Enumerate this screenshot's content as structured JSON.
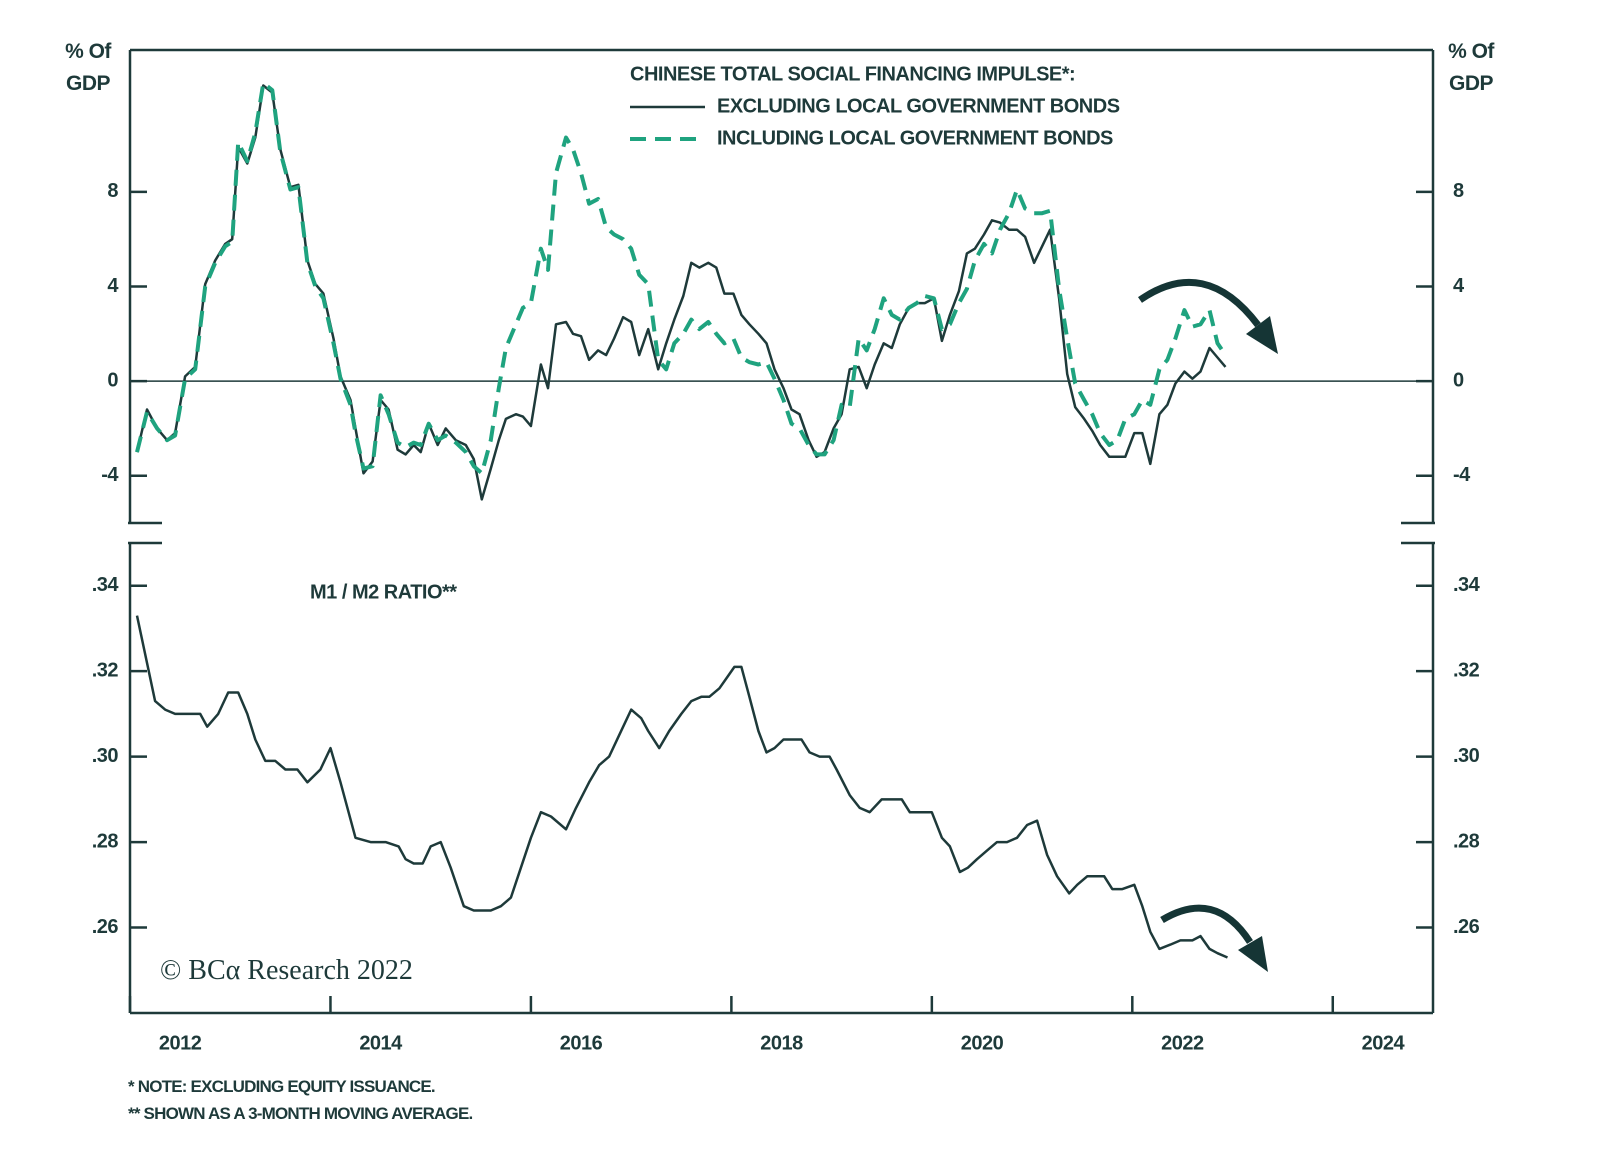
{
  "chart_data": [
    {
      "type": "line",
      "title": "CHINESE TOTAL SOCIAL FINANCING IMPULSE*:",
      "ylabel": "% Of GDP",
      "legend": "top-center",
      "zero_line": true,
      "xlim": [
        2012,
        2025
      ],
      "ylim": [
        -6,
        14
      ],
      "yticks": [
        -4,
        0,
        4,
        8
      ],
      "x": [
        2012.07,
        2012.17,
        2012.27,
        2012.37,
        2012.45,
        2012.55,
        2012.65,
        2012.75,
        2012.85,
        2012.95,
        2013.02,
        2013.08,
        2013.17,
        2013.25,
        2013.33,
        2013.42,
        2013.5,
        2013.6,
        2013.68,
        2013.77,
        2013.85,
        2013.93,
        2014.03,
        2014.1,
        2014.2,
        2014.25,
        2014.33,
        2014.42,
        2014.5,
        2014.58,
        2014.67,
        2014.75,
        2014.83,
        2014.9,
        2014.98,
        2015.07,
        2015.15,
        2015.25,
        2015.35,
        2015.43,
        2015.51,
        2015.6,
        2015.68,
        2015.75,
        2015.85,
        2015.92,
        2016,
        2016.1,
        2016.17,
        2016.25,
        2016.35,
        2016.42,
        2016.5,
        2016.58,
        2016.67,
        2016.75,
        2016.83,
        2016.92,
        2017,
        2017.08,
        2017.17,
        2017.27,
        2017.35,
        2017.43,
        2017.52,
        2017.6,
        2017.68,
        2017.77,
        2017.85,
        2017.93,
        2018.02,
        2018.1,
        2018.18,
        2018.27,
        2018.35,
        2018.43,
        2018.52,
        2018.6,
        2018.68,
        2018.77,
        2018.85,
        2018.93,
        2019.02,
        2019.1,
        2019.18,
        2019.27,
        2019.35,
        2019.43,
        2019.52,
        2019.6,
        2019.68,
        2019.77,
        2019.85,
        2019.93,
        2020.02,
        2020.1,
        2020.18,
        2020.27,
        2020.35,
        2020.43,
        2020.52,
        2020.6,
        2020.68,
        2020.77,
        2020.85,
        2020.93,
        2021.02,
        2021.1,
        2021.18,
        2021.27,
        2021.35,
        2021.43,
        2021.52,
        2021.6,
        2021.68,
        2021.77,
        2021.85,
        2021.93,
        2022.02,
        2022.1,
        2022.18,
        2022.27,
        2022.35,
        2022.43,
        2022.52,
        2022.6,
        2022.68,
        2022.77,
        2022.85,
        2022.93
      ],
      "series": [
        {
          "name": "EXCLUDING LOCAL GOVERNMENT BONDS",
          "color": "#1e3a3a",
          "dashed": false,
          "values": [
            -3.0,
            -1.2,
            -2.0,
            -2.5,
            -2.2,
            0.2,
            0.6,
            4.1,
            5.1,
            5.8,
            6.0,
            9.9,
            9.2,
            10.3,
            12.5,
            12.2,
            9.8,
            8.2,
            8.3,
            5.1,
            4.1,
            3.7,
            1.8,
            0.2,
            -0.8,
            -2.0,
            -3.9,
            -3.4,
            -0.8,
            -1.2,
            -2.9,
            -3.1,
            -2.7,
            -3.0,
            -1.8,
            -2.7,
            -2.0,
            -2.5,
            -2.7,
            -3.3,
            -5.0,
            -3.7,
            -2.5,
            -1.6,
            -1.4,
            -1.5,
            -1.9,
            0.7,
            -0.3,
            2.4,
            2.5,
            2.0,
            1.9,
            0.9,
            1.3,
            1.1,
            1.8,
            2.7,
            2.5,
            1.1,
            2.2,
            0.5,
            1.6,
            2.6,
            3.6,
            5.0,
            4.8,
            5.0,
            4.8,
            3.7,
            3.7,
            2.8,
            2.4,
            2.0,
            1.6,
            0.5,
            -0.3,
            -1.2,
            -1.4,
            -2.5,
            -3.2,
            -3.0,
            -2.0,
            -1.4,
            0.5,
            0.6,
            -0.3,
            0.7,
            1.6,
            1.4,
            2.4,
            3.1,
            3.3,
            3.3,
            3.5,
            1.7,
            2.8,
            3.8,
            5.4,
            5.6,
            6.2,
            6.8,
            6.7,
            6.4,
            6.4,
            6.1,
            5.0,
            5.7,
            6.4,
            3.5,
            0.3,
            -1.1,
            -1.6,
            -2.1,
            -2.7,
            -3.2,
            -3.2,
            -3.2,
            -2.2,
            -2.2,
            -3.5,
            -1.4,
            -1.0,
            -0.1,
            0.4,
            0.1,
            0.4,
            1.4,
            1.0,
            0.6
          ]
        },
        {
          "name": "INCLUDING LOCAL GOVERNMENT BONDS",
          "color": "#1fa37f",
          "dashed": true,
          "values": [
            -3.0,
            -1.3,
            -2.0,
            -2.5,
            -2.3,
            0.1,
            0.5,
            4.0,
            5.0,
            5.7,
            5.9,
            10.1,
            9.3,
            10.5,
            12.6,
            12.3,
            9.7,
            8.1,
            8.2,
            5.0,
            4.0,
            3.5,
            1.6,
            0.1,
            -1.0,
            -2.2,
            -3.7,
            -3.6,
            -0.6,
            -1.4,
            -2.6,
            -2.8,
            -2.6,
            -2.7,
            -1.8,
            -2.5,
            -2.3,
            -2.6,
            -3.0,
            -3.6,
            -3.9,
            -2.5,
            -0.3,
            1.4,
            2.4,
            3.1,
            3.3,
            5.6,
            4.7,
            8.8,
            10.3,
            9.8,
            8.8,
            7.5,
            7.7,
            6.5,
            6.2,
            6.0,
            5.6,
            4.5,
            4.1,
            0.9,
            0.5,
            1.6,
            2.0,
            2.6,
            2.2,
            2.5,
            2.0,
            1.6,
            1.8,
            1.0,
            0.8,
            0.7,
            0.8,
            0.1,
            -0.8,
            -1.8,
            -2.0,
            -2.7,
            -3.1,
            -3.1,
            -2.5,
            -1.0,
            -1.1,
            1.8,
            1.3,
            2.2,
            3.5,
            2.8,
            2.6,
            3.1,
            3.3,
            3.6,
            3.5,
            2.2,
            2.4,
            3.3,
            3.9,
            5.1,
            5.8,
            5.4,
            6.4,
            7.1,
            8.1,
            7.3,
            7.1,
            7.1,
            7.2,
            3.9,
            1.8,
            -0.1,
            -0.8,
            -1.4,
            -2.2,
            -2.7,
            -2.5,
            -1.6,
            -1.4,
            -0.8,
            -1.0,
            0.5,
            0.9,
            1.8,
            3.0,
            2.3,
            2.4,
            3.0,
            1.6,
            1.1
          ]
        }
      ]
    },
    {
      "type": "line",
      "title": "M1 / M2 RATIO**",
      "xlim": [
        2012,
        2025
      ],
      "xticks": [
        2012,
        2014,
        2016,
        2018,
        2020,
        2022,
        2024
      ],
      "ylim": [
        0.24,
        0.35
      ],
      "yticks": [
        {
          "value": 0.26,
          "label": ".26"
        },
        {
          "value": 0.28,
          "label": ".28"
        },
        {
          "value": 0.3,
          "label": ".30"
        },
        {
          "value": 0.32,
          "label": ".32"
        },
        {
          "value": 0.34,
          "label": ".34"
        }
      ],
      "x": [
        2012.07,
        2012.25,
        2012.35,
        2012.45,
        2012.6,
        2012.7,
        2012.77,
        2012.88,
        2012.98,
        2013.08,
        2013.17,
        2013.25,
        2013.35,
        2013.45,
        2013.55,
        2013.67,
        2013.77,
        2013.9,
        2014.0,
        2014.1,
        2014.25,
        2014.4,
        2014.55,
        2014.68,
        2014.75,
        2014.83,
        2014.92,
        2015.0,
        2015.1,
        2015.2,
        2015.33,
        2015.43,
        2015.5,
        2015.6,
        2015.7,
        2015.8,
        2015.9,
        2016.0,
        2016.1,
        2016.2,
        2016.35,
        2016.45,
        2016.58,
        2016.68,
        2016.78,
        2016.88,
        2017.0,
        2017.1,
        2017.17,
        2017.28,
        2017.38,
        2017.5,
        2017.6,
        2017.7,
        2017.78,
        2017.88,
        2017.97,
        2018.03,
        2018.1,
        2018.18,
        2018.27,
        2018.35,
        2018.43,
        2018.52,
        2018.62,
        2018.7,
        2018.78,
        2018.88,
        2018.98,
        2019.05,
        2019.18,
        2019.28,
        2019.38,
        2019.5,
        2019.6,
        2019.7,
        2019.78,
        2019.9,
        2020.0,
        2020.1,
        2020.18,
        2020.28,
        2020.36,
        2020.45,
        2020.55,
        2020.65,
        2020.75,
        2020.85,
        2020.95,
        2021.05,
        2021.15,
        2021.25,
        2021.37,
        2021.45,
        2021.55,
        2021.65,
        2021.72,
        2021.8,
        2021.9,
        2022.02,
        2022.1,
        2022.18,
        2022.27,
        2022.38,
        2022.48,
        2022.6,
        2022.68,
        2022.77,
        2022.85,
        2022.95
      ],
      "series": [
        {
          "color": "#1e3a3a",
          "dashed": false,
          "values": [
            0.333,
            0.313,
            0.311,
            0.31,
            0.31,
            0.31,
            0.307,
            0.31,
            0.315,
            0.315,
            0.31,
            0.304,
            0.299,
            0.299,
            0.297,
            0.297,
            0.294,
            0.297,
            0.302,
            0.294,
            0.281,
            0.28,
            0.28,
            0.279,
            0.276,
            0.275,
            0.275,
            0.279,
            0.28,
            0.274,
            0.265,
            0.264,
            0.264,
            0.264,
            0.265,
            0.267,
            0.274,
            0.281,
            0.287,
            0.286,
            0.283,
            0.288,
            0.294,
            0.298,
            0.3,
            0.305,
            0.311,
            0.309,
            0.306,
            0.302,
            0.306,
            0.31,
            0.313,
            0.314,
            0.314,
            0.316,
            0.319,
            0.321,
            0.321,
            0.314,
            0.306,
            0.301,
            0.302,
            0.304,
            0.304,
            0.304,
            0.301,
            0.3,
            0.3,
            0.297,
            0.291,
            0.288,
            0.287,
            0.29,
            0.29,
            0.29,
            0.287,
            0.287,
            0.287,
            0.281,
            0.279,
            0.273,
            0.274,
            0.276,
            0.278,
            0.28,
            0.28,
            0.281,
            0.284,
            0.285,
            0.277,
            0.272,
            0.268,
            0.27,
            0.272,
            0.272,
            0.272,
            0.269,
            0.269,
            0.27,
            0.265,
            0.259,
            0.255,
            0.256,
            0.257,
            0.257,
            0.258,
            0.255,
            0.254,
            0.253
          ]
        }
      ]
    }
  ],
  "watermark": "© BCα Research 2022",
  "notes": [
    "* NOTE: EXCLUDING EQUITY ISSUANCE.",
    "** SHOWN AS A 3-MONTH MOVING AVERAGE."
  ]
}
